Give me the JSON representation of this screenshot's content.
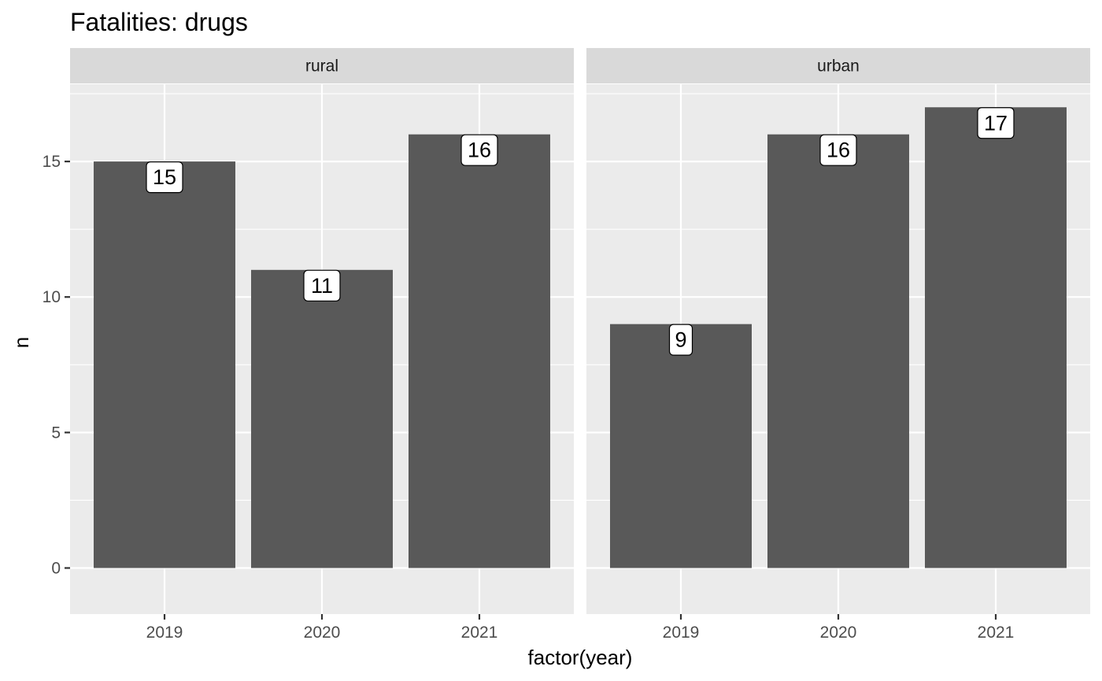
{
  "chart_data": {
    "type": "bar",
    "title": "Fatalities: drugs",
    "xlabel": "factor(year)",
    "ylabel": "n",
    "categories": [
      "2019",
      "2020",
      "2021"
    ],
    "facets": [
      {
        "name": "rural",
        "values": [
          15,
          11,
          16
        ]
      },
      {
        "name": "urban",
        "values": [
          9,
          16,
          17
        ]
      }
    ],
    "ylim": [
      -1.7,
      17.85
    ],
    "y_ticks": [
      0,
      5,
      10,
      15
    ],
    "bar_color": "#595959",
    "panel_background": "#ebebeb",
    "strip_background": "#d9d9d9",
    "grid": true,
    "legend": "none"
  }
}
